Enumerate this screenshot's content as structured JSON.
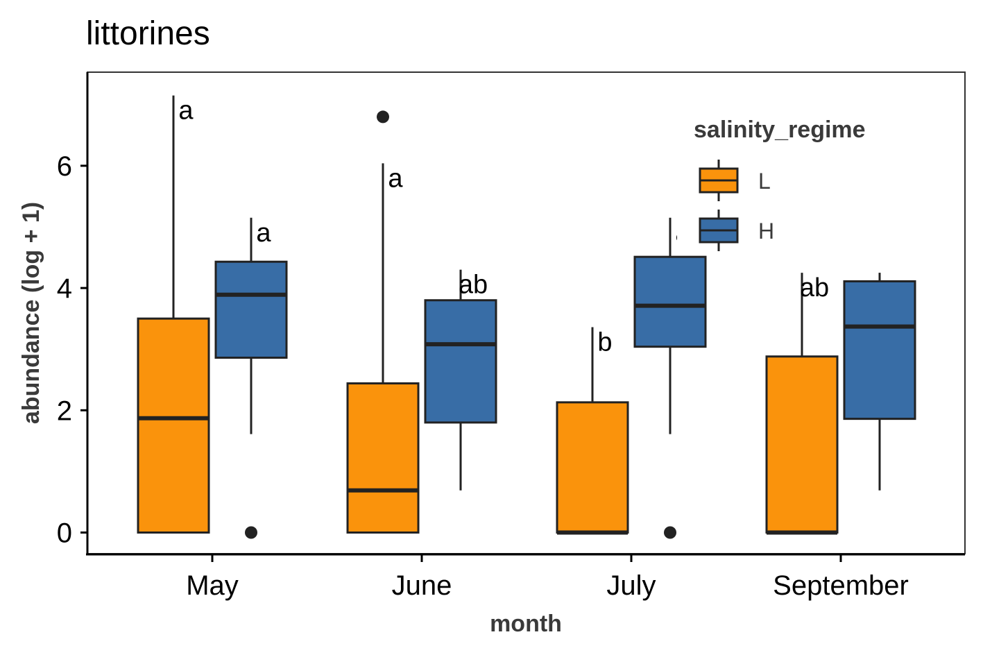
{
  "chart_data": {
    "type": "box",
    "title": "littorines",
    "xlabel": "month",
    "ylabel": "abundance (log + 1)",
    "ylim": [
      -0.35,
      7.4
    ],
    "y_ticks": [
      0,
      2,
      4,
      6
    ],
    "categories": [
      "May",
      "June",
      "July",
      "September"
    ],
    "legend": {
      "title": "salinity_regime",
      "position": "top-right",
      "entries": [
        {
          "name": "L",
          "color": "#FA930C"
        },
        {
          "name": "H",
          "color": "#386DA6"
        }
      ]
    },
    "series": [
      {
        "name": "L",
        "color": "#FA930C",
        "boxes": [
          {
            "category": "May",
            "min": 0,
            "q1": 0,
            "median": 1.87,
            "q3": 3.5,
            "max": 7.15,
            "outliers": [],
            "label": "a"
          },
          {
            "category": "June",
            "min": 0,
            "q1": 0,
            "median": 0.69,
            "q3": 2.44,
            "max": 6.04,
            "outliers": [
              6.8
            ],
            "label": "a"
          },
          {
            "category": "July",
            "min": 0,
            "q1": 0,
            "median": 0,
            "q3": 2.13,
            "max": 3.36,
            "outliers": [],
            "label": "b"
          },
          {
            "category": "September",
            "min": 0,
            "q1": 0,
            "median": 0,
            "q3": 2.88,
            "max": 4.25,
            "outliers": [],
            "label": "ab"
          }
        ]
      },
      {
        "name": "H",
        "color": "#386DA6",
        "boxes": [
          {
            "category": "May",
            "min": 1.61,
            "q1": 2.86,
            "median": 3.89,
            "q3": 4.43,
            "max": 5.15,
            "outliers": [
              0
            ],
            "label": "a"
          },
          {
            "category": "June",
            "min": 0.69,
            "q1": 1.8,
            "median": 3.08,
            "q3": 3.8,
            "max": 4.3,
            "outliers": [],
            "label": "ab"
          },
          {
            "category": "July",
            "min": 1.61,
            "q1": 3.04,
            "median": 3.71,
            "q3": 4.51,
            "max": 5.15,
            "outliers": [
              0
            ],
            "label": "a"
          },
          {
            "category": "September",
            "min": 0.69,
            "q1": 1.86,
            "median": 3.37,
            "q3": 4.11,
            "max": 4.25,
            "outliers": [],
            "label": ""
          }
        ]
      }
    ]
  }
}
